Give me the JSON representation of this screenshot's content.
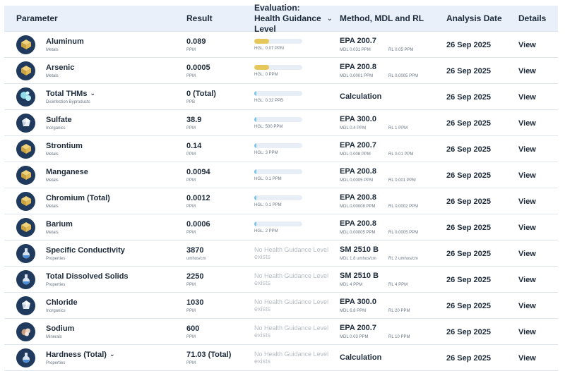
{
  "columns": {
    "parameter": "Parameter",
    "result": "Result",
    "evaluation": "Evaluation: Health Guidance Level",
    "method": "Method, MDL and RL",
    "date": "Analysis Date",
    "details": "Details"
  },
  "colors": {
    "bar_yellow": "#e6c85a",
    "bar_blue": "#7cc3ee",
    "icon_bg": "#1f3a5c"
  },
  "rows": [
    {
      "name": "Aluminum",
      "category": "Metals",
      "icon": "metal-cube-icon",
      "expand": false,
      "result": "0.089",
      "unit": "PPM",
      "hgl": "HGL: 0.07 PPM",
      "hgl_fill": 0.31,
      "bar": "yellow",
      "method": "EPA 200.7",
      "mdl": "MDL 0.031 PPM",
      "rl": "RL 0.05 PPM",
      "date": "26 Sep 2025",
      "action": "View"
    },
    {
      "name": "Arsenic",
      "category": "Metals",
      "icon": "metal-cube-icon",
      "expand": false,
      "result": "0.0005",
      "unit": "PPM",
      "hgl": "HGL: 0 PPM",
      "hgl_fill": 0.31,
      "bar": "yellow",
      "method": "EPA 200.8",
      "mdl": "MDL 0.0001 PPM",
      "rl": "RL 0.0005 PPM",
      "date": "26 Sep 2025",
      "action": "View"
    },
    {
      "name": "Total THMs",
      "category": "Disinfection Byproducts",
      "icon": "bubbles-icon",
      "expand": true,
      "result": "0 (Total)",
      "unit": "PPB",
      "hgl": "HGL: 0.32 PPB",
      "hgl_fill": 0.05,
      "bar": "blue",
      "method": "Calculation",
      "mdl": "",
      "rl": "",
      "date": "26 Sep 2025",
      "action": "View"
    },
    {
      "name": "Sulfate",
      "category": "Inorganics",
      "icon": "crystal-icon",
      "expand": false,
      "result": "38.9",
      "unit": "PPM",
      "hgl": "HGL: 500 PPM",
      "hgl_fill": 0.05,
      "bar": "blue",
      "method": "EPA 300.0",
      "mdl": "MDL 0.4 PPM",
      "rl": "RL 1 PPM",
      "date": "26 Sep 2025",
      "action": "View"
    },
    {
      "name": "Strontium",
      "category": "Metals",
      "icon": "metal-cube-icon",
      "expand": false,
      "result": "0.14",
      "unit": "PPM",
      "hgl": "HGL: 3 PPM",
      "hgl_fill": 0.05,
      "bar": "blue",
      "method": "EPA 200.7",
      "mdl": "MDL 0.008 PPM",
      "rl": "RL 0.01 PPM",
      "date": "26 Sep 2025",
      "action": "View"
    },
    {
      "name": "Manganese",
      "category": "Metals",
      "icon": "metal-cube-icon",
      "expand": false,
      "result": "0.0094",
      "unit": "PPM",
      "hgl": "HGL: 0.1 PPM",
      "hgl_fill": 0.05,
      "bar": "blue",
      "method": "EPA 200.8",
      "mdl": "MDL 0.0005 PPM",
      "rl": "RL 0.001 PPM",
      "date": "26 Sep 2025",
      "action": "View"
    },
    {
      "name": "Chromium (Total)",
      "category": "Metals",
      "icon": "metal-cube-icon",
      "expand": false,
      "result": "0.0012",
      "unit": "PPM",
      "hgl": "HGL: 0.1 PPM",
      "hgl_fill": 0.05,
      "bar": "blue",
      "method": "EPA 200.8",
      "mdl": "MDL 0.00008 PPM",
      "rl": "RL 0.0002 PPM",
      "date": "26 Sep 2025",
      "action": "View"
    },
    {
      "name": "Barium",
      "category": "Metals",
      "icon": "metal-cube-icon",
      "expand": false,
      "result": "0.0006",
      "unit": "PPM",
      "hgl": "HGL: 2 PPM",
      "hgl_fill": 0.05,
      "bar": "blue",
      "method": "EPA 200.8",
      "mdl": "MDL 0.00005 PPM",
      "rl": "RL 0.0005 PPM",
      "date": "26 Sep 2025",
      "action": "View"
    },
    {
      "name": "Specific Conductivity",
      "category": "Properties",
      "icon": "flask-icon",
      "expand": false,
      "result": "3870",
      "unit": "umhos/cm",
      "hgl": "",
      "no_hgl": "No Health Guidance Level exists",
      "method": "SM 2510 B",
      "mdl": "MDL 1.8 umhos/cm",
      "rl": "RL 2 umhos/cm",
      "date": "26 Sep 2025",
      "action": "View"
    },
    {
      "name": "Total Dissolved Solids",
      "category": "Properties",
      "icon": "flask-icon",
      "expand": false,
      "result": "2250",
      "unit": "PPM",
      "hgl": "",
      "no_hgl": "No Health Guidance Level exists",
      "method": "SM 2510 B",
      "mdl": "MDL 4 PPM",
      "rl": "RL 4 PPM",
      "date": "26 Sep 2025",
      "action": "View"
    },
    {
      "name": "Chloride",
      "category": "Inorganics",
      "icon": "crystal-icon",
      "expand": false,
      "result": "1030",
      "unit": "PPM",
      "hgl": "",
      "no_hgl": "No Health Guidance Level exists",
      "method": "EPA 300.0",
      "mdl": "MDL 6.8 PPM",
      "rl": "RL 20 PPM",
      "date": "26 Sep 2025",
      "action": "View"
    },
    {
      "name": "Sodium",
      "category": "Minerals",
      "icon": "mineral-icon",
      "expand": false,
      "result": "600",
      "unit": "PPM",
      "hgl": "",
      "no_hgl": "No Health Guidance Level exists",
      "method": "EPA 200.7",
      "mdl": "MDL 0.03 PPM",
      "rl": "RL 10 PPM",
      "date": "26 Sep 2025",
      "action": "View"
    },
    {
      "name": "Hardness (Total)",
      "category": "Properties",
      "icon": "flask-icon",
      "expand": true,
      "result": "71.03 (Total)",
      "unit": "PPM",
      "hgl": "",
      "no_hgl": "No Health Guidance Level exists",
      "method": "Calculation",
      "mdl": "",
      "rl": "",
      "date": "26 Sep 2025",
      "action": "View"
    }
  ]
}
